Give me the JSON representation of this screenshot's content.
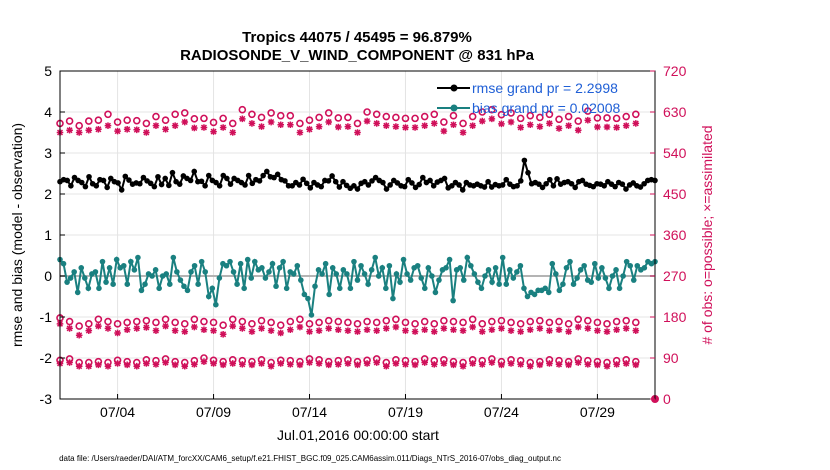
{
  "chart_data": {
    "type": "line",
    "title_line1": "Tropics 44075 / 45495 = 96.879%",
    "title_line2": "RADIOSONDE_V_WIND_COMPONENT @ 831 hPa",
    "xlabel": "Jul.01,2016 00:00:00 start",
    "ylabel_left": "rmse and bias (model - observation)",
    "ylabel_right": "# of obs: o=possible; ×=assimilated",
    "footer": "data file: /Users/raeder/DAI/ATM_forcXX/CAM6_setup/f.e21.FHIST_BGC.f09_025.CAM6assim.011/Diags_NTrS_2016-07/obs_diag_output.nc",
    "xlim": [
      1,
      32
    ],
    "ylim_left": [
      -3,
      5
    ],
    "ylim_right": [
      0,
      720
    ],
    "xticks": [
      4,
      9,
      14,
      19,
      24,
      29
    ],
    "xtick_labels": [
      "07/04",
      "07/09",
      "07/14",
      "07/19",
      "07/24",
      "07/29"
    ],
    "yticks_left": [
      "5",
      "4",
      "3",
      "2",
      "1",
      "0",
      "-1",
      "-2",
      "-3"
    ],
    "yticks_right": [
      "720",
      "630",
      "540",
      "450",
      "360",
      "270",
      "180",
      "90",
      "0"
    ],
    "legend": [
      "rmse grand pr = 2.2998",
      "bias grand pr = 0.02008"
    ],
    "colors": {
      "rmse": "#000000",
      "bias": "#1a8080",
      "obs": "#d0105a",
      "zero": "#b4b4b4"
    },
    "rmse": [
      2.3,
      2.35,
      2.33,
      2.2,
      2.4,
      2.33,
      2.28,
      2.18,
      2.42,
      2.25,
      2.2,
      2.35,
      2.33,
      2.16,
      2.38,
      2.3,
      2.27,
      2.1,
      2.43,
      2.34,
      2.24,
      2.27,
      2.25,
      2.4,
      2.32,
      2.26,
      2.18,
      2.42,
      2.23,
      2.38,
      2.21,
      2.52,
      2.3,
      2.24,
      2.44,
      2.38,
      2.33,
      2.55,
      2.3,
      2.31,
      2.2,
      2.45,
      2.33,
      2.28,
      2.2,
      2.45,
      2.38,
      2.24,
      2.38,
      2.33,
      2.28,
      2.22,
      2.45,
      2.26,
      2.35,
      2.32,
      2.45,
      2.55,
      2.42,
      2.4,
      2.48,
      2.35,
      2.32,
      2.2,
      2.2,
      2.28,
      2.22,
      2.36,
      2.26,
      2.15,
      2.28,
      2.22,
      2.18,
      2.33,
      2.32,
      2.44,
      2.3,
      2.17,
      2.3,
      2.21,
      2.14,
      2.2,
      2.12,
      2.26,
      2.3,
      2.22,
      2.32,
      2.4,
      2.33,
      2.28,
      2.12,
      2.22,
      2.33,
      2.27,
      2.2,
      2.18,
      2.35,
      2.27,
      2.16,
      2.23,
      2.4,
      2.28,
      2.33,
      2.2,
      2.29,
      2.33,
      2.38,
      2.15,
      2.2,
      2.28,
      2.22,
      2.1,
      2.28,
      2.22,
      2.2,
      2.24,
      2.2,
      2.17,
      2.3,
      2.17,
      2.23,
      2.2,
      2.22,
      2.35,
      2.24,
      2.18,
      2.2,
      2.32,
      2.82,
      2.52,
      2.25,
      2.28,
      2.24,
      2.16,
      2.25,
      2.35,
      2.2,
      2.37,
      2.24,
      2.28,
      2.3,
      2.25,
      2.16,
      2.3,
      2.33,
      2.24,
      2.21,
      2.18,
      2.25,
      2.24,
      2.2,
      2.3,
      2.24,
      2.18,
      2.28,
      2.24,
      2.12,
      2.22,
      2.27,
      2.2,
      2.17,
      2.25,
      2.33,
      2.35,
      2.33
    ],
    "bias": [
      0.4,
      0.3,
      -0.15,
      -0.05,
      0.1,
      -0.4,
      0.2,
      -0.05,
      -0.3,
      0.05,
      0.1,
      -0.3,
      0.35,
      -0.15,
      0.2,
      -0.2,
      0.4,
      0.2,
      0.25,
      -0.2,
      0.35,
      0.15,
      0.45,
      -0.35,
      -0.2,
      0.05,
      0.0,
      0.15,
      -0.3,
      0.0,
      0.05,
      -0.2,
      0.45,
      0.1,
      -0.1,
      -0.25,
      -0.35,
      0.1,
      0.25,
      -0.2,
      0.35,
      0.1,
      -0.5,
      -0.3,
      -0.7,
      -0.05,
      0.3,
      0.25,
      0.35,
      0.1,
      -0.2,
      0.3,
      -0.3,
      0.4,
      -0.05,
      0.35,
      0.15,
      0.2,
      -0.05,
      0.1,
      0.3,
      -0.25,
      0.2,
      0.35,
      -0.3,
      0.1,
      0.05,
      0.25,
      -0.1,
      -0.45,
      -0.55,
      -0.95,
      -0.25,
      0.15,
      0.05,
      0.3,
      -0.45,
      0.2,
      0.05,
      -0.3,
      0.15,
      0.05,
      -0.3,
      0.35,
      -0.1,
      0.25,
      0.05,
      -0.2,
      0.15,
      0.45,
      0.0,
      0.2,
      -0.3,
      0.25,
      -0.55,
      0.05,
      -0.15,
      0.4,
      0.05,
      -0.1,
      0.2,
      0.25,
      -0.05,
      -0.3,
      0.2,
      0.0,
      -0.4,
      -0.1,
      0.15,
      0.2,
      0.4,
      -0.6,
      0.15,
      0.2,
      -0.1,
      0.45,
      0.25,
      0.05,
      -0.15,
      -0.3,
      0.0,
      0.15,
      -0.15,
      0.2,
      -0.2,
      0.45,
      -0.2,
      0.15,
      -0.05,
      0.1,
      0.25,
      -0.3,
      -0.5,
      -0.4,
      -0.45,
      -0.35,
      -0.35,
      -0.3,
      -0.4,
      0.3,
      0.05,
      -0.35,
      -0.2,
      0.2,
      0.35,
      -0.2,
      -0.05,
      0.15,
      0.25,
      -0.1,
      -0.15,
      0.3,
      -0.05,
      0.2,
      -0.05,
      -0.3,
      0.0,
      0.15,
      -0.3,
      0.0,
      0.35,
      0.25,
      -0.1,
      0.25,
      0.15,
      0.2,
      0.35,
      0.3,
      0.35
    ],
    "obs_possible_12z": [
      605,
      610,
      600,
      610,
      612,
      625,
      608,
      612,
      611,
      605,
      620,
      612,
      625,
      628,
      615,
      616,
      607,
      616,
      605,
      635,
      625,
      618,
      628,
      622,
      622,
      605,
      612,
      618,
      628,
      617,
      618,
      605,
      630,
      625,
      620,
      618,
      616,
      616,
      620,
      625,
      608,
      622,
      605,
      620,
      630,
      635,
      624,
      628,
      616,
      622,
      618,
      625,
      614,
      620,
      610,
      632,
      617,
      617,
      616,
      620,
      625
    ],
    "obs_assimilated_12z": [
      585,
      590,
      585,
      590,
      592,
      600,
      588,
      592,
      591,
      585,
      600,
      592,
      600,
      608,
      595,
      596,
      587,
      596,
      585,
      615,
      605,
      598,
      608,
      602,
      602,
      585,
      592,
      598,
      608,
      597,
      598,
      585,
      610,
      605,
      600,
      598,
      596,
      596,
      600,
      605,
      588,
      602,
      585,
      600,
      610,
      615,
      604,
      608,
      596,
      602,
      598,
      605,
      594,
      600,
      590,
      612,
      597,
      597,
      596,
      600,
      605
    ],
    "obs_possible_00z": [
      178,
      170,
      160,
      165,
      175,
      170,
      165,
      168,
      170,
      172,
      168,
      175,
      168,
      165,
      175,
      170,
      168,
      162,
      175,
      170,
      165,
      172,
      168,
      162,
      170,
      175,
      165,
      168,
      172,
      170,
      168,
      165,
      170,
      168,
      172,
      175,
      168,
      165,
      170,
      165,
      172,
      170,
      168,
      175,
      165,
      170,
      172,
      168,
      165,
      170,
      172,
      168,
      170,
      165,
      175,
      172,
      168,
      165,
      170,
      172,
      168
    ],
    "obs_assimilated_00z": [
      165,
      155,
      140,
      150,
      160,
      155,
      145,
      152,
      155,
      157,
      150,
      160,
      150,
      148,
      158,
      152,
      150,
      142,
      160,
      155,
      148,
      155,
      150,
      145,
      152,
      158,
      148,
      150,
      155,
      152,
      150,
      148,
      152,
      150,
      155,
      158,
      150,
      148,
      152,
      148,
      155,
      152,
      150,
      158,
      148,
      152,
      155,
      150,
      148,
      152,
      155,
      150,
      152,
      148,
      158,
      155,
      150,
      148,
      152,
      155,
      150
    ],
    "obs_possible_low": [
      85,
      88,
      80,
      80,
      82,
      80,
      85,
      82,
      80,
      86,
      84,
      88,
      82,
      80,
      84,
      90,
      85,
      82,
      86,
      84,
      82,
      86,
      80,
      85,
      84,
      82,
      88,
      86,
      82,
      84,
      86,
      82,
      85,
      88,
      80,
      86,
      84,
      82,
      88,
      84,
      86,
      82,
      80,
      86,
      84,
      88,
      82,
      86,
      84,
      80,
      82,
      86,
      84,
      82,
      88,
      84,
      82,
      80,
      84,
      86,
      82
    ],
    "obs_assimilated_low": [
      78,
      80,
      72,
      72,
      75,
      72,
      78,
      75,
      72,
      78,
      76,
      80,
      75,
      72,
      76,
      82,
      78,
      75,
      78,
      76,
      75,
      78,
      72,
      78,
      76,
      75,
      80,
      78,
      75,
      76,
      78,
      75,
      78,
      80,
      72,
      78,
      76,
      75,
      80,
      76,
      78,
      75,
      72,
      78,
      76,
      80,
      75,
      78,
      76,
      72,
      75,
      78,
      76,
      75,
      80,
      76,
      75,
      72,
      76,
      78,
      75
    ]
  }
}
